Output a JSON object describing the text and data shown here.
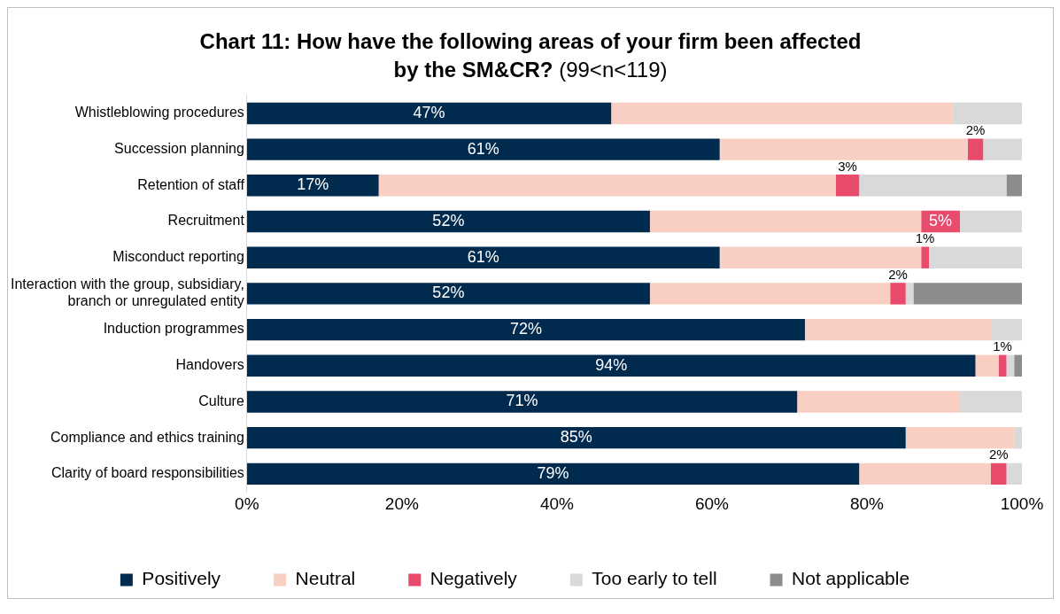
{
  "chart_data": {
    "type": "bar",
    "orientation": "horizontal",
    "stacked": true,
    "title": "Chart 11: How have the following areas of your firm been affected by the SM&CR?",
    "subtitle": "(99<n<119)",
    "categories": [
      "Whistleblowing procedures",
      "Succession planning",
      "Retention of staff",
      "Recruitment",
      "Misconduct reporting",
      "Interaction with the group, subsidiary, branch or unregulated entity",
      "Induction programmes",
      "Handovers",
      "Culture",
      "Compliance and ethics training",
      "Clarity of board responsibilities"
    ],
    "series": [
      {
        "name": "Positively",
        "color": "#002a4e",
        "values": [
          47,
          61,
          17,
          52,
          61,
          52,
          72,
          94,
          71,
          85,
          79
        ],
        "value_labels": [
          "47%",
          "61%",
          "17%",
          "52%",
          "61%",
          "52%",
          "72%",
          "94%",
          "71%",
          "85%",
          "79%"
        ]
      },
      {
        "name": "Neutral",
        "color": "#f9cfc3",
        "values": [
          44,
          32,
          59,
          35,
          26,
          31,
          24,
          3,
          21,
          14,
          17
        ]
      },
      {
        "name": "Negatively",
        "color": "#e84b6c",
        "values": [
          null,
          2,
          3,
          5,
          1,
          2,
          null,
          1,
          null,
          null,
          2
        ],
        "value_labels": [
          null,
          "2%",
          "3%",
          "5%",
          "1%",
          "2%",
          null,
          "1%",
          null,
          null,
          "2%"
        ]
      },
      {
        "name": "Too early to tell",
        "color": "#d9d9d9",
        "values": [
          9,
          5,
          19,
          8,
          12,
          1,
          4,
          1,
          8,
          1,
          2
        ]
      },
      {
        "name": "Not applicable",
        "color": "#8c8c8c",
        "values": [
          null,
          null,
          2,
          null,
          null,
          14,
          null,
          1,
          null,
          null,
          null
        ]
      }
    ],
    "xlim": [
      0,
      100
    ],
    "xticks": [
      {
        "value": 0,
        "label": "0%"
      },
      {
        "value": 20,
        "label": "20%"
      },
      {
        "value": 40,
        "label": "40%"
      },
      {
        "value": 60,
        "label": "60%"
      },
      {
        "value": 80,
        "label": "80%"
      },
      {
        "value": 100,
        "label": "100%"
      }
    ],
    "grid": false,
    "legend": "bottom"
  }
}
